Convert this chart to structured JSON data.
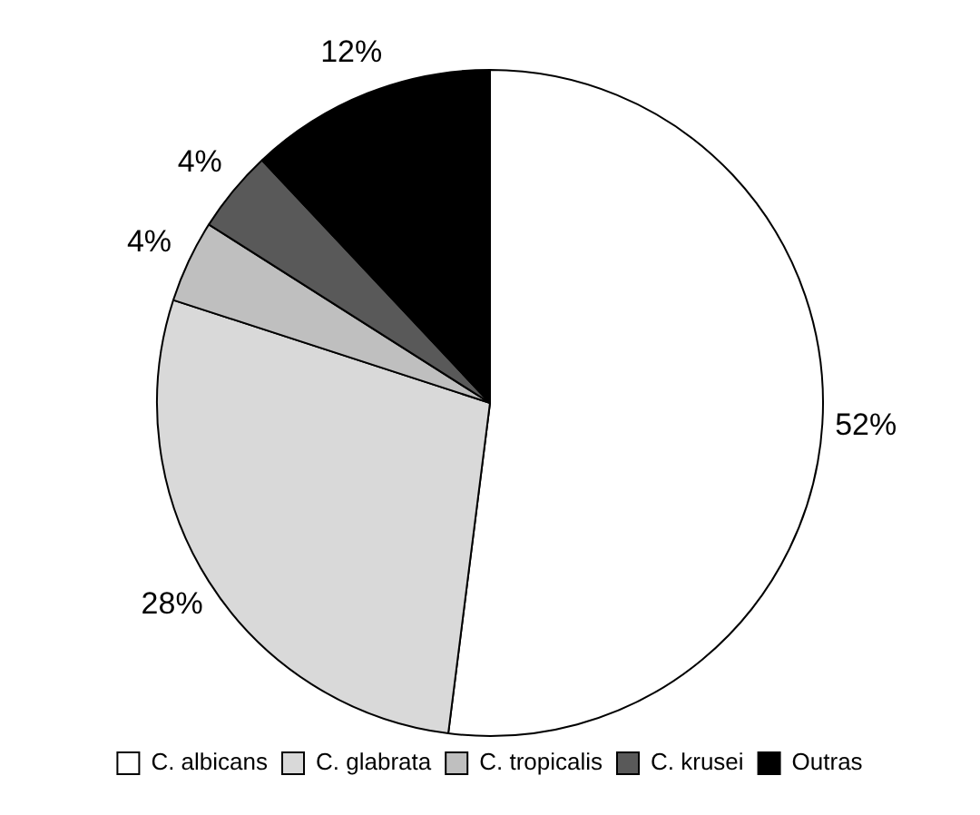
{
  "chart_data": {
    "type": "pie",
    "categories": [
      "C. albicans",
      "C. glabrata",
      "C. tropicalis",
      "C. krusei",
      "Outras"
    ],
    "values": [
      52,
      28,
      4,
      4,
      12
    ],
    "value_labels": [
      "52%",
      "28%",
      "4%",
      "4%",
      "12%"
    ],
    "colors": [
      "#ffffff",
      "#d9d9d9",
      "#bfbfbf",
      "#595959",
      "#000000"
    ],
    "legend": "bottom"
  }
}
